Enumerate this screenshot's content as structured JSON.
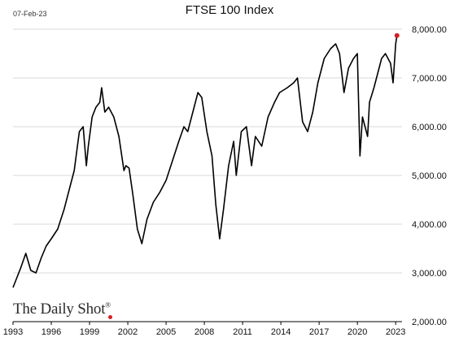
{
  "header": {
    "date_label": "07-Feb-23",
    "title": "FTSE 100 Index"
  },
  "brand": {
    "name": "The Daily Shot",
    "mark": "®"
  },
  "colors": {
    "line": "#000000",
    "gridline": "#d9d9d9",
    "last_point": "#d61f26",
    "brand_dot": "#d61f26"
  },
  "chart_data": {
    "type": "line",
    "title": "FTSE 100 Index",
    "xlabel": "",
    "ylabel": "",
    "y_axis_position": "right",
    "grid": "horizontal",
    "xlim": [
      1993,
      2023.5
    ],
    "ylim": [
      2000,
      8000
    ],
    "x_ticks": [
      1993,
      1996,
      1999,
      2002,
      2005,
      2008,
      2011,
      2014,
      2017,
      2020,
      2023
    ],
    "x_tick_labels": [
      "1993",
      "1996",
      "1999",
      "2002",
      "2005",
      "2008",
      "2011",
      "2014",
      "2017",
      "2020",
      "2023"
    ],
    "y_ticks": [
      2000,
      3000,
      4000,
      5000,
      6000,
      7000,
      8000
    ],
    "y_tick_labels": [
      "2,000.00",
      "3,000.00",
      "4,000.00",
      "5,000.00",
      "6,000.00",
      "7,000.00",
      "8,000.00"
    ],
    "last_point": {
      "x": 2023.1,
      "y": 7870
    },
    "series": [
      {
        "x": [
          1993.0,
          1993.3,
          1993.6,
          1994.0,
          1994.4,
          1994.8,
          1995.2,
          1995.6,
          1996.0,
          1996.5,
          1997.0,
          1997.5,
          1997.8,
          1998.2,
          1998.5,
          1998.75,
          1998.9,
          1999.2,
          1999.5,
          1999.8,
          1999.95,
          2000.2,
          2000.5,
          2000.9,
          2001.3,
          2001.7,
          2001.85,
          2002.1,
          2002.4,
          2002.75,
          2003.1,
          2003.5,
          2004.0,
          2004.5,
          2005.0,
          2005.5,
          2006.0,
          2006.4,
          2006.7,
          2007.2,
          2007.5,
          2007.8,
          2008.2,
          2008.6,
          2008.9,
          2009.2,
          2009.5,
          2009.9,
          2010.3,
          2010.5,
          2010.9,
          2011.3,
          2011.7,
          2012.0,
          2012.5,
          2013.0,
          2013.5,
          2013.9,
          2014.5,
          2015.0,
          2015.3,
          2015.7,
          2016.1,
          2016.5,
          2016.9,
          2017.4,
          2017.9,
          2018.3,
          2018.6,
          2018.95,
          2019.3,
          2019.7,
          2020.0,
          2020.2,
          2020.4,
          2020.8,
          2020.95,
          2021.3,
          2021.6,
          2021.9,
          2022.2,
          2022.6,
          2022.8,
          2023.0,
          2023.1
        ],
        "y": [
          2700,
          2900,
          3100,
          3400,
          3050,
          3000,
          3300,
          3550,
          3700,
          3900,
          4300,
          4800,
          5100,
          5900,
          6000,
          5200,
          5600,
          6200,
          6400,
          6500,
          6800,
          6300,
          6400,
          6200,
          5800,
          5100,
          5200,
          5150,
          4600,
          3900,
          3600,
          4100,
          4450,
          4650,
          4900,
          5300,
          5700,
          6000,
          5900,
          6400,
          6700,
          6600,
          5900,
          5400,
          4400,
          3700,
          4300,
          5200,
          5700,
          5000,
          5900,
          6000,
          5200,
          5800,
          5600,
          6200,
          6500,
          6700,
          6800,
          6900,
          7000,
          6100,
          5900,
          6300,
          6900,
          7400,
          7600,
          7700,
          7500,
          6700,
          7200,
          7400,
          7500,
          5400,
          6200,
          5800,
          6500,
          6800,
          7100,
          7400,
          7500,
          7300,
          6900,
          7700,
          7870
        ]
      }
    ]
  }
}
